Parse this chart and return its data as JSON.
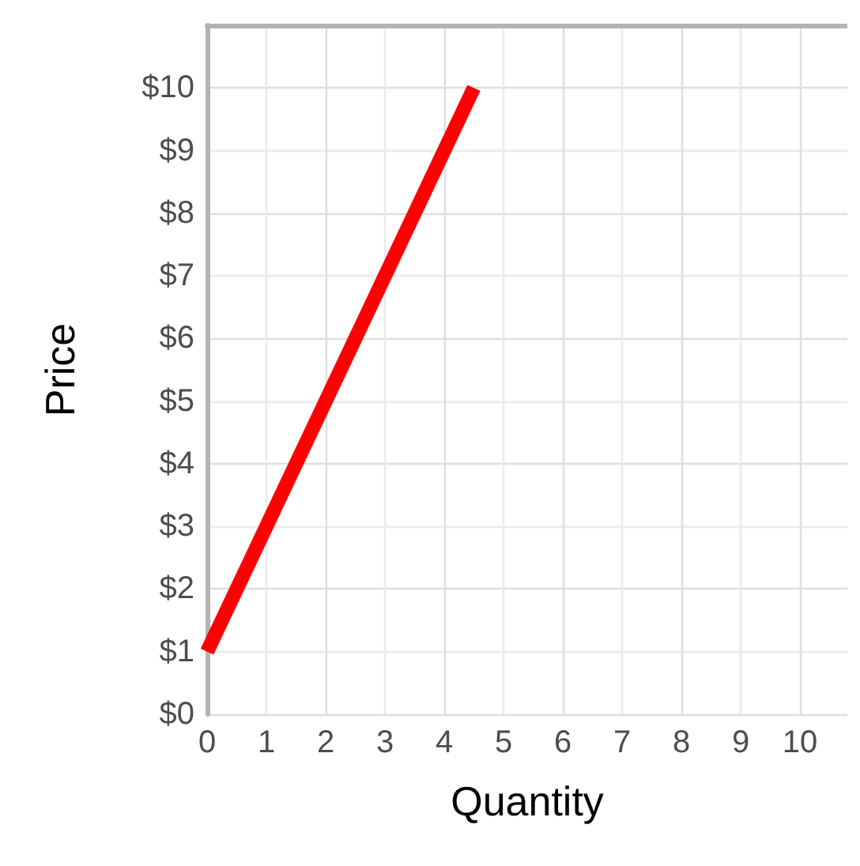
{
  "chart_data": {
    "type": "line",
    "xlabel": "Quantity",
    "ylabel": "Price",
    "x": [
      0,
      4.5
    ],
    "series": [
      {
        "color": "#ff0000",
        "values": [
          1,
          10
        ]
      }
    ],
    "xlim": [
      0,
      10.8
    ],
    "xticks": [
      0,
      1,
      2,
      3,
      4,
      5,
      6,
      7,
      8,
      9,
      10
    ],
    "ylim": [
      0,
      11
    ],
    "yticks": [
      {
        "value": 0,
        "label": "$0"
      },
      {
        "value": 1,
        "label": "$1"
      },
      {
        "value": 2,
        "label": "$2"
      },
      {
        "value": 3,
        "label": "$3"
      },
      {
        "value": 4,
        "label": "$4"
      },
      {
        "value": 5,
        "label": "$5"
      },
      {
        "value": 6,
        "label": "$6"
      },
      {
        "value": 7,
        "label": "$7"
      },
      {
        "value": 8,
        "label": "$8"
      },
      {
        "value": 9,
        "label": "$9"
      },
      {
        "value": 10,
        "label": "$10"
      }
    ],
    "grid": true,
    "marker": "none",
    "line_style": "solid"
  }
}
